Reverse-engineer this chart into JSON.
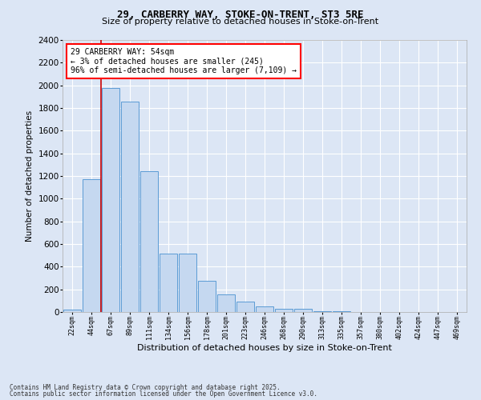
{
  "title_line1": "29, CARBERRY WAY, STOKE-ON-TRENT, ST3 5RE",
  "title_line2": "Size of property relative to detached houses in Stoke-on-Trent",
  "xlabel": "Distribution of detached houses by size in Stoke-on-Trent",
  "ylabel": "Number of detached properties",
  "categories": [
    "22sqm",
    "44sqm",
    "67sqm",
    "89sqm",
    "111sqm",
    "134sqm",
    "156sqm",
    "178sqm",
    "201sqm",
    "223sqm",
    "246sqm",
    "268sqm",
    "290sqm",
    "313sqm",
    "335sqm",
    "357sqm",
    "380sqm",
    "402sqm",
    "424sqm",
    "447sqm",
    "469sqm"
  ],
  "values": [
    22,
    1175,
    1980,
    1855,
    1245,
    515,
    515,
    275,
    155,
    90,
    50,
    30,
    28,
    10,
    5,
    3,
    3,
    2,
    2,
    2,
    2
  ],
  "bar_color": "#c5d8f0",
  "bar_edge_color": "#5b9bd5",
  "marker_label": "29 CARBERRY WAY: 54sqm\n← 3% of detached houses are smaller (245)\n96% of semi-detached houses are larger (7,109) →",
  "annotation_box_color": "#ff0000",
  "vline_color": "#cc0000",
  "bg_color": "#dce6f5",
  "plot_bg_color": "#dce6f5",
  "grid_color": "#ffffff",
  "footer_line1": "Contains HM Land Registry data © Crown copyright and database right 2025.",
  "footer_line2": "Contains public sector information licensed under the Open Government Licence v3.0.",
  "ylim": [
    0,
    2400
  ],
  "yticks": [
    0,
    200,
    400,
    600,
    800,
    1000,
    1200,
    1400,
    1600,
    1800,
    2000,
    2200,
    2400
  ]
}
